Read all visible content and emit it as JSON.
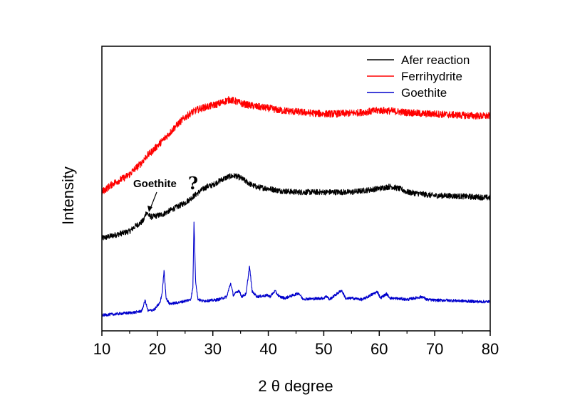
{
  "chart_data": {
    "type": "line",
    "title": "",
    "xlabel": "2 θ degree",
    "ylabel": "Intensity",
    "xlim": [
      10,
      80
    ],
    "ylim": [
      0,
      400
    ],
    "x_ticks": [
      10,
      20,
      30,
      40,
      50,
      60,
      70,
      80
    ],
    "x_tick_labels": [
      "10",
      "20",
      "30",
      "40",
      "50",
      "60",
      "70",
      "80"
    ],
    "y_ticks_shown": false,
    "grid": false,
    "legend_position": "top-right",
    "series": [
      {
        "name": "Afer reaction",
        "color": "#000000",
        "points": [
          [
            10,
            130
          ],
          [
            12,
            134
          ],
          [
            14,
            138
          ],
          [
            15,
            140
          ],
          [
            16,
            147
          ],
          [
            17,
            152
          ],
          [
            17.5,
            155
          ],
          [
            18,
            167
          ],
          [
            18.5,
            162
          ],
          [
            19,
            160
          ],
          [
            20,
            162
          ],
          [
            21,
            164
          ],
          [
            22,
            168
          ],
          [
            23,
            172
          ],
          [
            24,
            176
          ],
          [
            25,
            180
          ],
          [
            26,
            186
          ],
          [
            27,
            192
          ],
          [
            28,
            198
          ],
          [
            29,
            203
          ],
          [
            30,
            205
          ],
          [
            31,
            210
          ],
          [
            32,
            214
          ],
          [
            33,
            217
          ],
          [
            34,
            218
          ],
          [
            35,
            215
          ],
          [
            36,
            210
          ],
          [
            37,
            205
          ],
          [
            38,
            202
          ],
          [
            40,
            200
          ],
          [
            42,
            197
          ],
          [
            45,
            195
          ],
          [
            48,
            195
          ],
          [
            50,
            195
          ],
          [
            52,
            195
          ],
          [
            55,
            195
          ],
          [
            58,
            198
          ],
          [
            60,
            200
          ],
          [
            62,
            203
          ],
          [
            64,
            199
          ],
          [
            65,
            195
          ],
          [
            68,
            192
          ],
          [
            70,
            190
          ],
          [
            72,
            190
          ],
          [
            75,
            189
          ],
          [
            78,
            188
          ],
          [
            80,
            187
          ]
        ],
        "noise": 4
      },
      {
        "name": "Ferrihydrite",
        "color": "#ff0000",
        "points": [
          [
            10,
            195
          ],
          [
            12,
            207
          ],
          [
            14,
            215
          ],
          [
            15,
            220
          ],
          [
            16,
            228
          ],
          [
            17,
            235
          ],
          [
            18,
            245
          ],
          [
            19,
            252
          ],
          [
            20,
            260
          ],
          [
            21,
            268
          ],
          [
            22,
            276
          ],
          [
            23,
            285
          ],
          [
            24,
            293
          ],
          [
            25,
            300
          ],
          [
            26,
            306
          ],
          [
            27,
            310
          ],
          [
            28,
            313
          ],
          [
            29,
            315
          ],
          [
            30,
            317
          ],
          [
            31,
            319
          ],
          [
            32,
            322
          ],
          [
            33,
            325
          ],
          [
            34,
            323
          ],
          [
            35,
            320
          ],
          [
            36,
            318
          ],
          [
            38,
            315
          ],
          [
            40,
            313
          ],
          [
            42,
            310
          ],
          [
            45,
            308
          ],
          [
            48,
            306
          ],
          [
            50,
            305
          ],
          [
            52,
            305
          ],
          [
            55,
            306
          ],
          [
            58,
            308
          ],
          [
            60,
            310
          ],
          [
            62,
            309
          ],
          [
            65,
            307
          ],
          [
            68,
            305
          ],
          [
            70,
            305
          ],
          [
            72,
            304
          ],
          [
            75,
            303
          ],
          [
            78,
            302
          ],
          [
            80,
            302
          ]
        ],
        "noise": 5
      },
      {
        "name": "Goethite",
        "color": "#0000cc",
        "points": [
          [
            10,
            22
          ],
          [
            13,
            24
          ],
          [
            16,
            26
          ],
          [
            17.2,
            28
          ],
          [
            17.8,
            43
          ],
          [
            18.3,
            28
          ],
          [
            19.5,
            30
          ],
          [
            20.5,
            40
          ],
          [
            20.9,
            55
          ],
          [
            21.2,
            85
          ],
          [
            21.6,
            45
          ],
          [
            22.2,
            38
          ],
          [
            24,
            40
          ],
          [
            26,
            44
          ],
          [
            26.4,
            60
          ],
          [
            26.6,
            153
          ],
          [
            26.9,
            70
          ],
          [
            27.3,
            45
          ],
          [
            28,
            42
          ],
          [
            30,
            43
          ],
          [
            31,
            44
          ],
          [
            32.5,
            48
          ],
          [
            33.2,
            67
          ],
          [
            33.7,
            50
          ],
          [
            34.7,
            57
          ],
          [
            35.2,
            48
          ],
          [
            36,
            52
          ],
          [
            36.6,
            91
          ],
          [
            37.1,
            55
          ],
          [
            38,
            48
          ],
          [
            39.9,
            50
          ],
          [
            40.3,
            48
          ],
          [
            41.2,
            56
          ],
          [
            42,
            48
          ],
          [
            43,
            46
          ],
          [
            45.5,
            53
          ],
          [
            46.2,
            45
          ],
          [
            48,
            45
          ],
          [
            50,
            46
          ],
          [
            50.5,
            49
          ],
          [
            51,
            44
          ],
          [
            53.2,
            57
          ],
          [
            54,
            45
          ],
          [
            55,
            46
          ],
          [
            57,
            44
          ],
          [
            58.9,
            52
          ],
          [
            59.7,
            55
          ],
          [
            60.2,
            46
          ],
          [
            61.3,
            52
          ],
          [
            62,
            46
          ],
          [
            64,
            45
          ],
          [
            65,
            44
          ],
          [
            67.8,
            48
          ],
          [
            68.5,
            44
          ],
          [
            70,
            43
          ],
          [
            72,
            43
          ],
          [
            75,
            42
          ],
          [
            78,
            41
          ],
          [
            80,
            41
          ]
        ],
        "noise": 2
      }
    ],
    "annotations": [
      {
        "text": "Goethite",
        "mark": "?",
        "x": 18,
        "series": "Afer reaction"
      }
    ]
  }
}
